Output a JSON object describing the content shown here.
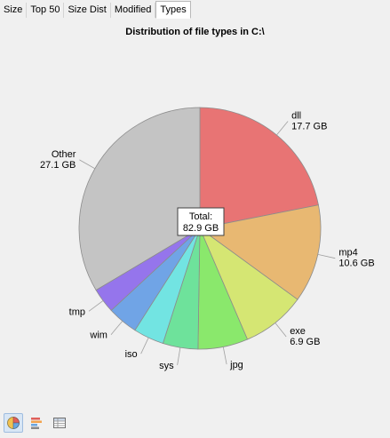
{
  "tabs": [
    {
      "label": "Size"
    },
    {
      "label": "Top 50"
    },
    {
      "label": "Size Dist"
    },
    {
      "label": "Modified"
    },
    {
      "label": "Types",
      "active": true
    }
  ],
  "chart_data": {
    "type": "pie",
    "title": "Distribution of file types in C:\\",
    "unit": "GB",
    "center_label": {
      "title": "Total:",
      "value": "82.9 GB"
    },
    "slices": [
      {
        "label": "dll",
        "value": 17.7,
        "value_label": "17.7 GB",
        "color": "#e87474"
      },
      {
        "label": "mp4",
        "value": 10.6,
        "value_label": "10.6 GB",
        "color": "#e8b872"
      },
      {
        "label": "exe",
        "value": 6.9,
        "value_label": "6.9 GB",
        "color": "#d5e673"
      },
      {
        "label": "jpg",
        "value": 5.4,
        "value_label": "",
        "color": "#8ae86c"
      },
      {
        "label": "sys",
        "value": 3.8,
        "value_label": "",
        "color": "#6ee29b"
      },
      {
        "label": "iso",
        "value": 3.3,
        "value_label": "",
        "color": "#72e4e2"
      },
      {
        "label": "wim",
        "value": 3.3,
        "value_label": "",
        "color": "#70a4e6"
      },
      {
        "label": "tmp",
        "value": 2.7,
        "value_label": "",
        "color": "#9575ec"
      },
      {
        "label": "Other",
        "value": 27.1,
        "value_label": "27.1 GB",
        "color": "#c4c4c4"
      }
    ]
  },
  "toolbar": {
    "buttons": [
      {
        "icon": "pie-chart-icon",
        "active": true
      },
      {
        "icon": "bar-chart-icon",
        "active": false
      },
      {
        "icon": "table-icon",
        "active": false
      }
    ]
  }
}
